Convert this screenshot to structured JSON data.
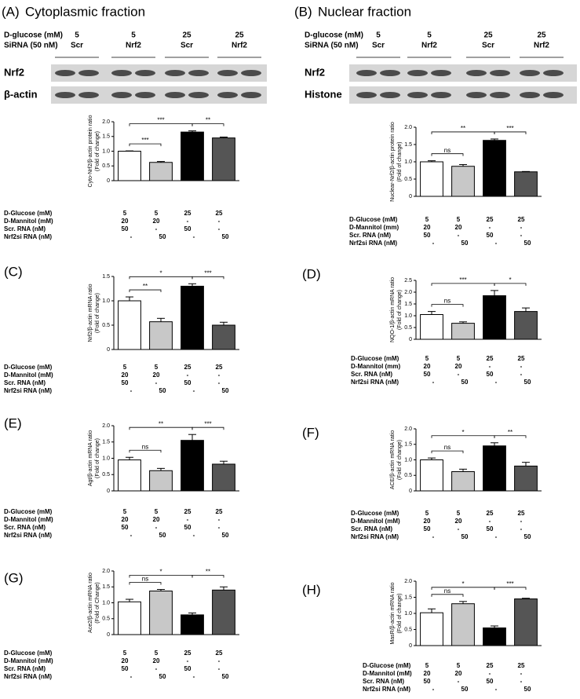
{
  "chart_data": [
    {
      "type": "bar",
      "panel": "(A)",
      "title": "Cytoplasmic fraction",
      "blot": {
        "header": [
          {
            "label": "D-glucose (mM)",
            "cells": [
              "5",
              "5",
              "25",
              "25"
            ]
          },
          {
            "label": "SiRNA (50 nM)",
            "cells": [
              "Scr",
              "Nrf2",
              "Scr",
              "Nrf2"
            ]
          }
        ],
        "rows": [
          "Nrf2",
          "β-actin"
        ]
      },
      "ylabel": [
        "Cyto-Nrf2/β-actin protein ratio",
        "(Fold of change)"
      ],
      "values": [
        1.0,
        0.62,
        1.65,
        1.45
      ],
      "errors": [
        0.01,
        0.03,
        0.04,
        0.03
      ],
      "colors": [
        "#ffffff",
        "#c8c8c8",
        "#000000",
        "#555555"
      ],
      "ylim": [
        0,
        2
      ],
      "yticks": [
        0,
        0.5,
        {
          "value": 1,
          "label": "1.0"
        },
        1.5,
        {
          "value": 2,
          "label": "2.0"
        }
      ],
      "significance": [
        {
          "bars": [
            0,
            1
          ],
          "label": "***"
        },
        {
          "bars": [
            0,
            2
          ],
          "label": "***"
        },
        {
          "bars": [
            2,
            3
          ],
          "label": "**"
        }
      ],
      "conditions": [
        {
          "label": "D-Glucose (mM)",
          "cells": [
            "5",
            "5",
            "25",
            "25"
          ]
        },
        {
          "label": "D-Mannitol (mM)",
          "cells": [
            "20",
            "20",
            "-",
            "-"
          ]
        },
        {
          "label": "Scr.   RNA (nM)",
          "cells": [
            "50",
            "-",
            "50",
            "-"
          ]
        },
        {
          "label": "Nrf2si RNA (nM)",
          "cells": [
            "-",
            "50",
            "-",
            "50"
          ]
        }
      ]
    },
    {
      "type": "bar",
      "panel": "(B)",
      "title": "Nuclear fraction",
      "blot": {
        "header": [
          {
            "label": "D-glucose (mM)",
            "cells": [
              "5",
              "5",
              "25",
              "25"
            ]
          },
          {
            "label": "SiRNA (50 nM)",
            "cells": [
              "Scr",
              "Nrf2",
              "Scr",
              "Nrf2"
            ]
          }
        ],
        "rows": [
          "Nrf2",
          "Histone"
        ]
      },
      "ylabel": [
        "Nuclear-Nrf2/β-actin protein ratio",
        "(Fold of change)"
      ],
      "values": [
        1.0,
        0.87,
        1.62,
        0.71
      ],
      "errors": [
        0.03,
        0.05,
        0.04,
        0.01
      ],
      "colors": [
        "#ffffff",
        "#c8c8c8",
        "#000000",
        "#555555"
      ],
      "ylim": [
        0,
        2
      ],
      "yticks": [
        0,
        0.5,
        {
          "value": 1,
          "label": "1.0"
        },
        1.5,
        {
          "value": 2,
          "label": "2.0"
        }
      ],
      "significance": [
        {
          "bars": [
            0,
            1
          ],
          "label": "ns"
        },
        {
          "bars": [
            0,
            2
          ],
          "label": "**"
        },
        {
          "bars": [
            2,
            3
          ],
          "label": "***"
        }
      ],
      "conditions": [
        {
          "label": "D-Glucose (mM)",
          "cells": [
            "5",
            "5",
            "25",
            "25"
          ]
        },
        {
          "label": "D-Mannitol (mm)",
          "cells": [
            "20",
            "20",
            "-",
            "-"
          ]
        },
        {
          "label": "Scr.   RNA (nM)",
          "cells": [
            "50",
            "-",
            "50",
            "-"
          ]
        },
        {
          "label": "Nrf2si RNA (nM)",
          "cells": [
            "-",
            "50",
            "-",
            "50"
          ]
        }
      ]
    },
    {
      "type": "bar",
      "panel": "(C)",
      "ylabel": [
        "Nrf2/β-actin mRNA ratio",
        "(Fold of change)"
      ],
      "values": [
        1.0,
        0.57,
        1.3,
        0.5
      ],
      "errors": [
        0.08,
        0.07,
        0.05,
        0.06
      ],
      "colors": [
        "#ffffff",
        "#c8c8c8",
        "#000000",
        "#555555"
      ],
      "ylim": [
        0,
        1.5
      ],
      "yticks": [
        0,
        0.5,
        {
          "value": 1,
          "label": "1.0"
        },
        1.5
      ],
      "significance": [
        {
          "bars": [
            0,
            1
          ],
          "label": "**"
        },
        {
          "bars": [
            0,
            2
          ],
          "label": "*"
        },
        {
          "bars": [
            2,
            3
          ],
          "label": "***"
        }
      ],
      "conditions": [
        {
          "label": "D-Glucose (mM)",
          "cells": [
            "5",
            "5",
            "25",
            "25"
          ]
        },
        {
          "label": "D-Mannitol (mM)",
          "cells": [
            "20",
            "20",
            "-",
            "-"
          ]
        },
        {
          "label": "Scr.   RNA (nM)",
          "cells": [
            "50",
            "-",
            "50",
            "-"
          ]
        },
        {
          "label": "Nrf2si RNA (nM)",
          "cells": [
            "-",
            "50",
            "-",
            "50"
          ]
        }
      ]
    },
    {
      "type": "bar",
      "panel": "(D)",
      "ylabel": [
        "NQO-1/β-actin mRNA ratio",
        "(Fold of change)"
      ],
      "values": [
        1.05,
        0.68,
        1.85,
        1.18
      ],
      "errors": [
        0.13,
        0.06,
        0.22,
        0.15
      ],
      "colors": [
        "#ffffff",
        "#c8c8c8",
        "#000000",
        "#555555"
      ],
      "ylim": [
        0,
        2.5
      ],
      "yticks": [
        0,
        0.5,
        {
          "value": 1,
          "label": "1.0"
        },
        1.5,
        {
          "value": 2,
          "label": "2.0"
        },
        2.5
      ],
      "significance": [
        {
          "bars": [
            0,
            1
          ],
          "label": "ns"
        },
        {
          "bars": [
            0,
            2
          ],
          "label": "***"
        },
        {
          "bars": [
            2,
            3
          ],
          "label": "*"
        }
      ],
      "conditions": [
        {
          "label": "D-Glucose (mM)",
          "cells": [
            "5",
            "5",
            "25",
            "25"
          ]
        },
        {
          "label": "D-Mannitol (mm)",
          "cells": [
            "20",
            "20",
            "-",
            "-"
          ]
        },
        {
          "label": "Scr.   RNA (nM)",
          "cells": [
            "50",
            "-",
            "50",
            "-"
          ]
        },
        {
          "label": "Nrf2si RNA (nM)",
          "cells": [
            "-",
            "50",
            "-",
            "50"
          ]
        }
      ]
    },
    {
      "type": "bar",
      "panel": "(E)",
      "ylabel": [
        "Agt/β-actin mRNA ratio",
        "(Fold of change)"
      ],
      "values": [
        0.95,
        0.62,
        1.55,
        0.82
      ],
      "errors": [
        0.08,
        0.07,
        0.18,
        0.09
      ],
      "colors": [
        "#ffffff",
        "#c8c8c8",
        "#000000",
        "#555555"
      ],
      "ylim": [
        0,
        2
      ],
      "yticks": [
        0,
        0.5,
        {
          "value": 1,
          "label": "1.0"
        },
        1.5,
        {
          "value": 2,
          "label": "2.0"
        }
      ],
      "significance": [
        {
          "bars": [
            0,
            1
          ],
          "label": "ns"
        },
        {
          "bars": [
            0,
            2
          ],
          "label": "**"
        },
        {
          "bars": [
            2,
            3
          ],
          "label": "***"
        }
      ],
      "conditions": [
        {
          "label": "D-Glucose (mM)",
          "cells": [
            "5",
            "5",
            "25",
            "25"
          ]
        },
        {
          "label": "D-Mannitol (mM)",
          "cells": [
            "20",
            "20",
            "-",
            "-"
          ]
        },
        {
          "label": "Scr.   RNA (nM)",
          "cells": [
            "50",
            "-",
            "50",
            "-"
          ]
        },
        {
          "label": "Nrf2si RNA (nM)",
          "cells": [
            "-",
            "50",
            "-",
            "50"
          ]
        }
      ]
    },
    {
      "type": "bar",
      "panel": "(F)",
      "ylabel": [
        "ACE/β-actin mRNA ratio",
        "(Fold of change)"
      ],
      "values": [
        1.0,
        0.62,
        1.45,
        0.8
      ],
      "errors": [
        0.06,
        0.08,
        0.1,
        0.12
      ],
      "colors": [
        "#ffffff",
        "#c8c8c8",
        "#000000",
        "#555555"
      ],
      "ylim": [
        0,
        2
      ],
      "yticks": [
        0,
        0.5,
        {
          "value": 1,
          "label": "1.0"
        },
        1.5,
        {
          "value": 2,
          "label": "2.0"
        }
      ],
      "significance": [
        {
          "bars": [
            0,
            1
          ],
          "label": "ns"
        },
        {
          "bars": [
            0,
            2
          ],
          "label": "*"
        },
        {
          "bars": [
            2,
            3
          ],
          "label": "**"
        }
      ],
      "conditions": [
        {
          "label": "D-Glucose (mM)",
          "cells": [
            "5",
            "5",
            "25",
            "25"
          ]
        },
        {
          "label": "D-Mannitol (mM)",
          "cells": [
            "20",
            "20",
            "-",
            "-"
          ]
        },
        {
          "label": "Scr.   RNA (nM)",
          "cells": [
            "50",
            "-",
            "50",
            "-"
          ]
        },
        {
          "label": "Nrf2si RNA (nM)",
          "cells": [
            "-",
            "50",
            "-",
            "50"
          ]
        }
      ]
    },
    {
      "type": "bar",
      "panel": "(G)",
      "ylabel": [
        "Ace2/β-actin mRNA ratio",
        "(Fold of Change)"
      ],
      "values": [
        1.03,
        1.37,
        0.62,
        1.4
      ],
      "errors": [
        0.08,
        0.05,
        0.06,
        0.1
      ],
      "colors": [
        "#ffffff",
        "#c8c8c8",
        "#000000",
        "#555555"
      ],
      "ylim": [
        0,
        2
      ],
      "yticks": [
        0,
        0.5,
        {
          "value": 1,
          "label": "1.0"
        },
        1.5,
        {
          "value": 2,
          "label": "2.0"
        }
      ],
      "significance": [
        {
          "bars": [
            0,
            1
          ],
          "label": "ns"
        },
        {
          "bars": [
            0,
            2
          ],
          "label": "*"
        },
        {
          "bars": [
            2,
            3
          ],
          "label": "**"
        }
      ],
      "conditions": [
        {
          "label": "D-Glucose (mM)",
          "cells": [
            "5",
            "5",
            "25",
            "25"
          ]
        },
        {
          "label": "D-Mannitol (mM)",
          "cells": [
            "20",
            "20",
            "-",
            "-"
          ]
        },
        {
          "label": "Scr.   RNA (nM)",
          "cells": [
            "50",
            "-",
            "50",
            "-"
          ]
        },
        {
          "label": "Nrf2si RNA (nM)",
          "cells": [
            "-",
            "50",
            "-",
            "50"
          ]
        }
      ]
    },
    {
      "type": "bar",
      "panel": "(H)",
      "ylabel": [
        "MasR/β-actin mRNA ratio",
        "(Fold of change)"
      ],
      "values": [
        1.02,
        1.3,
        0.55,
        1.45
      ],
      "errors": [
        0.12,
        0.07,
        0.06,
        0.02
      ],
      "colors": [
        "#ffffff",
        "#c8c8c8",
        "#000000",
        "#555555"
      ],
      "ylim": [
        0,
        2
      ],
      "yticks": [
        0,
        0.5,
        {
          "value": 1,
          "label": "1.0"
        },
        1.5,
        {
          "value": 2,
          "label": "2.0"
        }
      ],
      "significance": [
        {
          "bars": [
            0,
            1
          ],
          "label": "ns"
        },
        {
          "bars": [
            0,
            2
          ],
          "label": "*"
        },
        {
          "bars": [
            2,
            3
          ],
          "label": "***"
        }
      ],
      "conditions": [
        {
          "label": "D-Glucose (mM)",
          "cells": [
            "5",
            "5",
            "25",
            "25"
          ]
        },
        {
          "label": "D-Mannitol (mM)",
          "cells": [
            "20",
            "20",
            "-",
            "-"
          ]
        },
        {
          "label": "Scr.   RNA (nM)",
          "cells": [
            "50",
            "-",
            "50",
            "-"
          ]
        },
        {
          "label": "Nrf2si RNA (nM)",
          "cells": [
            "-",
            "50",
            "-",
            "50"
          ]
        }
      ]
    }
  ]
}
